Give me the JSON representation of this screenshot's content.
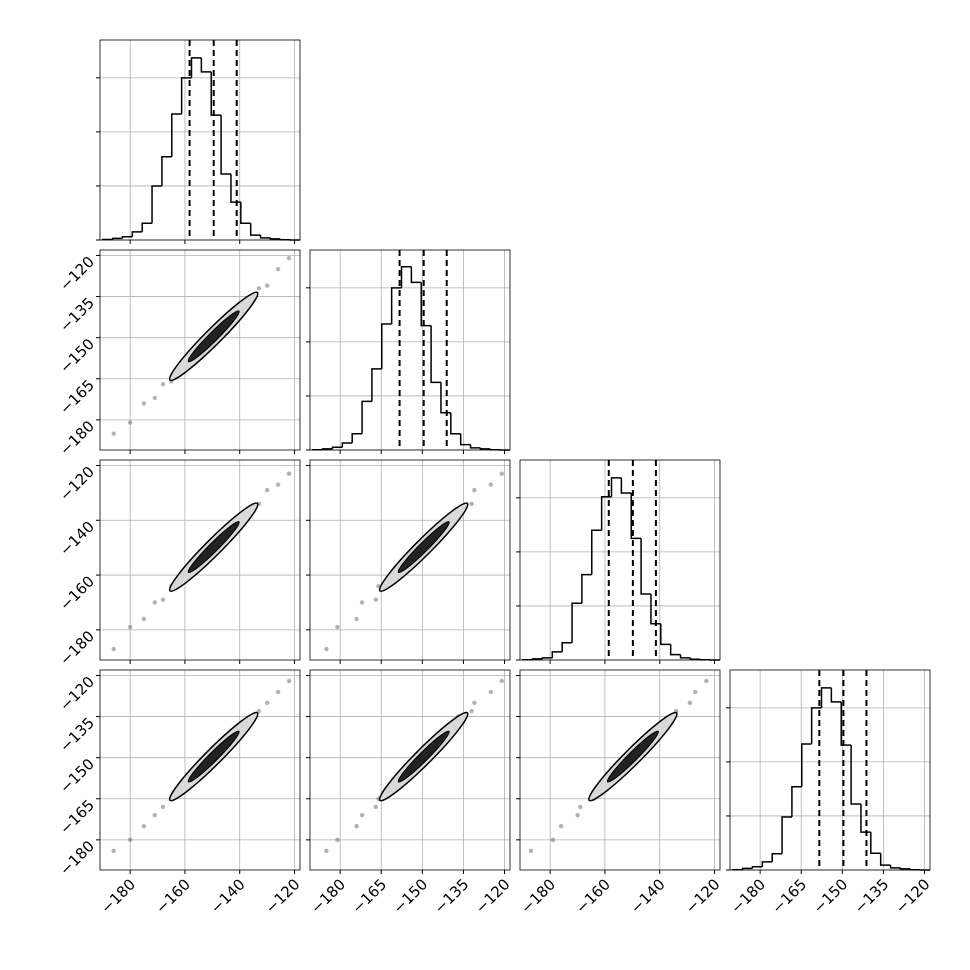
{
  "chart_data": {
    "type": "corner",
    "variables": [
      {
        "range": [
          -191,
          -118
        ],
        "ticks": [
          {
            "value": -180,
            "label": "−180"
          },
          {
            "value": -160,
            "label": "−160"
          },
          {
            "value": -140,
            "label": "−140"
          },
          {
            "value": -120,
            "label": "−120"
          }
        ],
        "bins": [
          -190,
          -186.4,
          -182.8,
          -179.2,
          -175.6,
          -172,
          -168.4,
          -164.8,
          -161.2,
          -157.6,
          -154,
          -150.4,
          -146.8,
          -143.2,
          -139.6,
          -136,
          -132.4,
          -128.8,
          -125.2,
          -121.6,
          -118
        ],
        "counts": [
          10,
          30,
          60,
          150,
          310,
          1000,
          1540,
          2330,
          3000,
          3370,
          3110,
          2310,
          1220,
          700,
          310,
          90,
          40,
          20,
          5,
          0
        ],
        "quantiles": [
          -158.3,
          -149.5,
          -141.1
        ]
      },
      {
        "range": [
          -191,
          -118
        ],
        "ticks": [
          {
            "value": -180,
            "label": "−180"
          },
          {
            "value": -165,
            "label": "−165"
          },
          {
            "value": -150,
            "label": "−150"
          },
          {
            "value": -135,
            "label": "−135"
          },
          {
            "value": -120,
            "label": "−120"
          }
        ],
        "bins": [
          -190,
          -186.4,
          -182.8,
          -179.2,
          -175.6,
          -172,
          -168.4,
          -164.8,
          -161.2,
          -157.6,
          -154,
          -150.4,
          -146.8,
          -143.2,
          -139.6,
          -136,
          -132.4,
          -128.8,
          -125.2,
          -121.6,
          -118
        ],
        "counts": [
          5,
          20,
          50,
          130,
          300,
          900,
          1500,
          2330,
          3000,
          3390,
          3100,
          2300,
          1250,
          690,
          300,
          100,
          40,
          20,
          5,
          0
        ],
        "quantiles": [
          -158.3,
          -149.5,
          -141.1
        ]
      },
      {
        "range": [
          -191,
          -118
        ],
        "ticks": [
          {
            "value": -180,
            "label": "−180"
          },
          {
            "value": -160,
            "label": "−160"
          },
          {
            "value": -140,
            "label": "−140"
          },
          {
            "value": -120,
            "label": "−120"
          }
        ],
        "bins": [
          -190,
          -186.4,
          -182.8,
          -179.2,
          -175.6,
          -172,
          -168.4,
          -164.8,
          -161.2,
          -157.6,
          -154,
          -150.4,
          -146.8,
          -143.2,
          -139.6,
          -136,
          -132.4,
          -128.8,
          -125.2,
          -121.6,
          -118
        ],
        "counts": [
          5,
          20,
          40,
          150,
          320,
          1050,
          1580,
          2400,
          3020,
          3370,
          3090,
          2250,
          1220,
          670,
          290,
          100,
          40,
          15,
          5,
          0
        ],
        "quantiles": [
          -158.6,
          -149.8,
          -141.4
        ]
      },
      {
        "range": [
          -191,
          -118
        ],
        "ticks": [
          {
            "value": -180,
            "label": "−180"
          },
          {
            "value": -165,
            "label": "−165"
          },
          {
            "value": -150,
            "label": "−150"
          },
          {
            "value": -135,
            "label": "−135"
          },
          {
            "value": -120,
            "label": "−120"
          }
        ],
        "bins": [
          -190,
          -186.4,
          -182.8,
          -179.2,
          -175.6,
          -172,
          -168.4,
          -164.8,
          -161.2,
          -157.6,
          -154,
          -150.4,
          -146.8,
          -143.2,
          -139.6,
          -136,
          -132.4,
          -128.8,
          -125.2,
          -121.6,
          -118
        ],
        "counts": [
          5,
          30,
          60,
          150,
          300,
          980,
          1540,
          2330,
          3000,
          3370,
          3110,
          2310,
          1220,
          700,
          310,
          90,
          40,
          20,
          5,
          0
        ],
        "quantiles": [
          -158.4,
          -149.6,
          -141.2
        ]
      }
    ],
    "hist_ylim": [
      0,
      3700
    ],
    "hist_yticks": [
      0,
      1000,
      2000,
      3000
    ],
    "samples": [
      [
        -186,
        -185,
        -187,
        -184
      ],
      [
        -180,
        -181,
        -179,
        -180
      ],
      [
        -175,
        -174,
        -176,
        -175
      ],
      [
        -171,
        -172,
        -170,
        -171
      ],
      [
        -168,
        -167,
        -169,
        -168
      ],
      [
        -165,
        -166,
        -164,
        -165
      ],
      [
        -162,
        -161,
        -163,
        -162
      ],
      [
        -159,
        -160,
        -158,
        -159
      ],
      [
        -157,
        -156,
        -157,
        -158
      ],
      [
        -155,
        -155,
        -154,
        -155
      ],
      [
        -153,
        -152,
        -154,
        -153
      ],
      [
        -151,
        -151,
        -150,
        -151
      ],
      [
        -149,
        -150,
        -149,
        -148
      ],
      [
        -147,
        -146,
        -148,
        -147
      ],
      [
        -145,
        -146,
        -144,
        -145
      ],
      [
        -143,
        -142,
        -143,
        -144
      ],
      [
        -141,
        -141,
        -140,
        -141
      ],
      [
        -139,
        -138,
        -139,
        -139
      ],
      [
        -136,
        -137,
        -136,
        -135
      ],
      [
        -133,
        -132,
        -134,
        -133
      ],
      [
        -130,
        -131,
        -129,
        -130
      ],
      [
        -126,
        -125,
        -127,
        -126
      ],
      [
        -122,
        -121,
        -123,
        -122
      ]
    ],
    "grid": true,
    "color": "#000000",
    "contour_color": "#d9d9d9"
  }
}
